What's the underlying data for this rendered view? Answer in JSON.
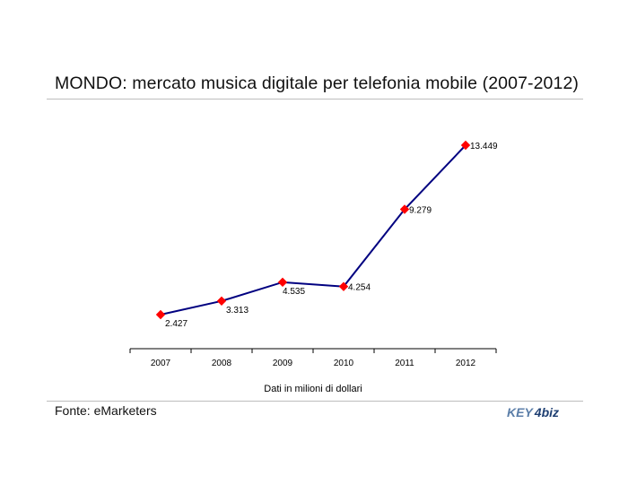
{
  "title": "MONDO: mercato musica digitale per telefonia mobile (2007-2012)",
  "source": "Fonte: eMarketers",
  "logo": {
    "text_a": "KEY",
    "text_b": "4biz"
  },
  "chart_data": {
    "type": "line",
    "title": "MONDO: mercato musica digitale per telefonia mobile (2007-2012)",
    "xlabel": "Dati in milioni di dollari",
    "ylabel": "",
    "categories": [
      "2007",
      "2008",
      "2009",
      "2010",
      "2011",
      "2012"
    ],
    "series": [
      {
        "values": [
          2427,
          3313,
          4535,
          4254,
          9279,
          13449
        ],
        "labels": [
          "2.427",
          "3.313",
          "4.535",
          "4.254",
          "9.279",
          "13.449"
        ]
      }
    ],
    "ylim": [
      0,
      13449
    ],
    "grid": false,
    "legend": "none",
    "colors": {
      "line": "#000080",
      "marker": "#ff0000",
      "axis": "#000000"
    }
  }
}
